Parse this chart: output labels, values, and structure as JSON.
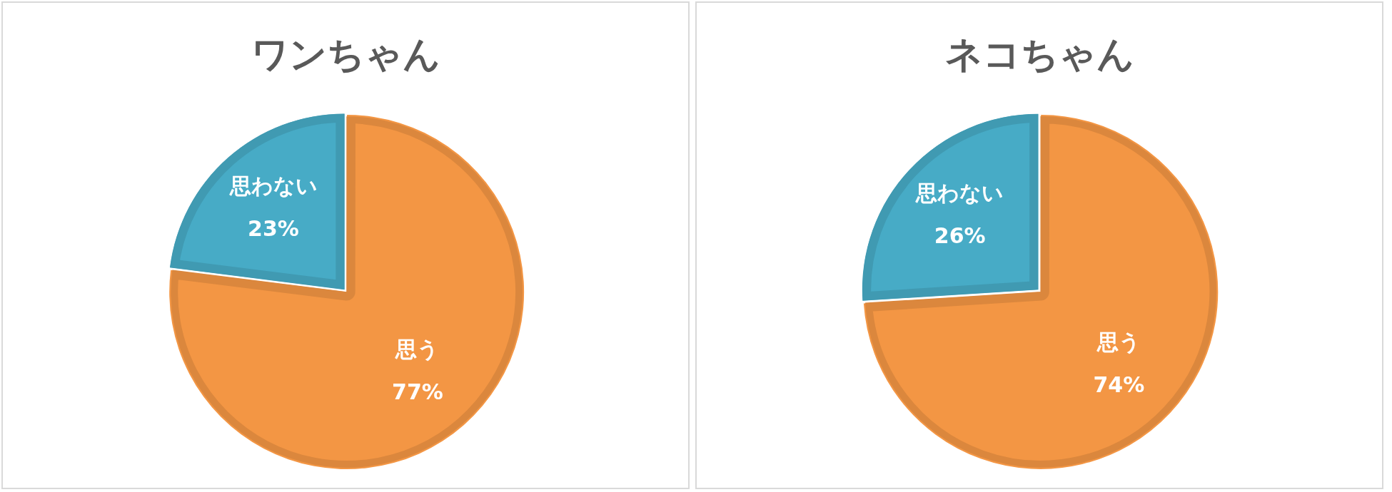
{
  "chart_data": [
    {
      "type": "pie",
      "title": "ワンちゃん",
      "categories": [
        "思う",
        "思わない"
      ],
      "values": [
        77,
        23
      ],
      "colors": [
        "#f39644",
        "#47abc6"
      ],
      "value_labels": [
        "77%",
        "23%"
      ],
      "legend": false
    },
    {
      "type": "pie",
      "title": "ネコちゃん",
      "categories": [
        "思う",
        "思わない"
      ],
      "values": [
        74,
        26
      ],
      "colors": [
        "#f39644",
        "#47abc6"
      ],
      "value_labels": [
        "74%",
        "26%"
      ],
      "legend": false
    }
  ]
}
